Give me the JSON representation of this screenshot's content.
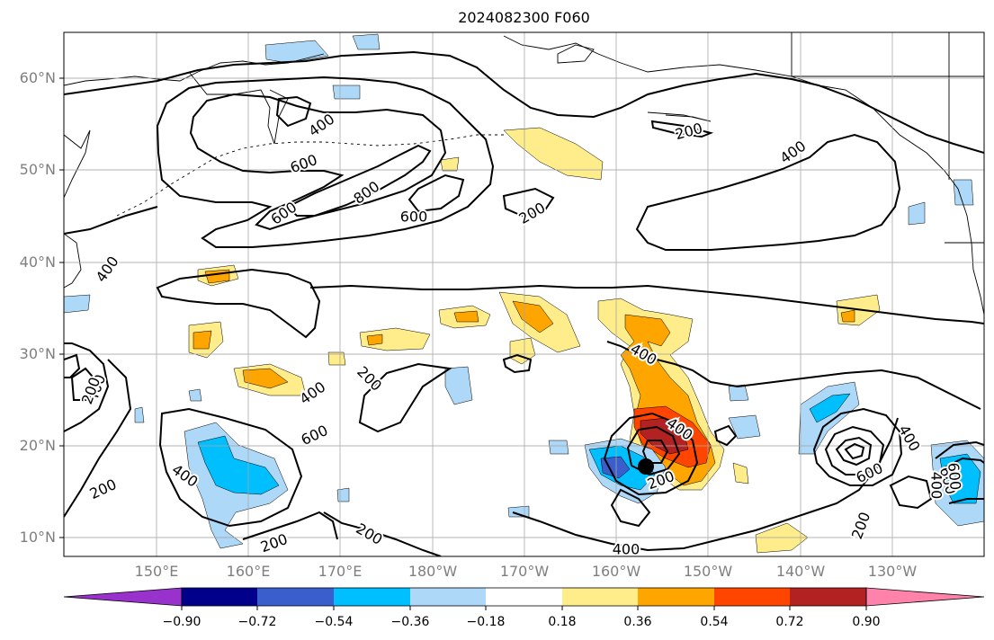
{
  "title": "2024082300 F060",
  "axes": {
    "lat_labels": [
      "60°N",
      "50°N",
      "40°N",
      "30°N",
      "20°N",
      "10°N"
    ],
    "lon_labels": [
      "150°E",
      "160°E",
      "170°E",
      "180°W",
      "170°W",
      "160°W",
      "150°W",
      "140°W",
      "130°W"
    ]
  },
  "contour_labels": [
    "400",
    "600",
    "600",
    "800",
    "600",
    "400",
    "200",
    "200",
    "400",
    "200",
    "400",
    "600",
    "400",
    "200",
    "400",
    "200",
    "200",
    "200",
    "400",
    "400",
    "200",
    "400",
    "600",
    "400",
    "600",
    "200",
    "400",
    "600"
  ],
  "colorbar": {
    "tick_labels": [
      "−0.90",
      "−0.72",
      "−0.54",
      "−0.36",
      "−0.18",
      "0.18",
      "0.36",
      "0.54",
      "0.72",
      "0.90"
    ],
    "colors": [
      "#9932cc",
      "#00008b",
      "#3a5fcd",
      "#00bfff",
      "#add8f8",
      "#ffffff",
      "#ffec8b",
      "#ffa500",
      "#ff4500",
      "#b22222",
      "#ff82ab"
    ]
  },
  "storm_marker": "filled black circle (tropical cyclone center)"
}
